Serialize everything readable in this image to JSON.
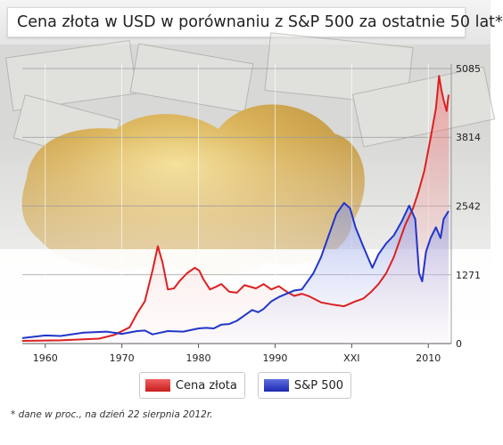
{
  "header": {
    "title": "Cena złota w USD w porównaniu z S&P 500 za ostatnie 50 lat*"
  },
  "footnote": "* dane w proc., na dzień 22 sierpnia 2012r.",
  "colors": {
    "gold": "#dd2020",
    "sp500": "#2236c8"
  },
  "chart_data": {
    "type": "line",
    "title": "Cena złota w USD w porównaniu z S&P 500 za ostatnie 50 lat*",
    "ylim": [
      0,
      5085
    ],
    "xlim": [
      1957,
      2013
    ],
    "y_ticks": [
      0,
      1271,
      2542,
      3814,
      5085
    ],
    "y_tick_labels": [
      "0",
      "1271",
      "2542",
      "3814",
      "5085"
    ],
    "x_ticks": [
      1960,
      1970,
      1980,
      1990,
      2000,
      2010
    ],
    "x_tick_labels": [
      "1960",
      "1970",
      "1980",
      "1990",
      "XXI",
      "2010"
    ],
    "grid": true,
    "legend_position": "bottom",
    "series": [
      {
        "name": "Cena złota",
        "color": "#dd2020",
        "x": [
          1957,
          1962,
          1967,
          1969,
          1971,
          1972,
          1973,
          1974,
          1974.7,
          1975.3,
          1976,
          1976.8,
          1977.5,
          1978.5,
          1979.5,
          1980.1,
          1980.6,
          1981.5,
          1982.3,
          1983,
          1984,
          1985,
          1986,
          1987.5,
          1988.5,
          1989.5,
          1990.5,
          1991.5,
          1992.5,
          1993.5,
          1994.5,
          1996,
          1997.5,
          1999,
          2000.5,
          2001.5,
          2002.5,
          2003.5,
          2004.5,
          2005.5,
          2006,
          2007,
          2008,
          2008.7,
          2009.5,
          2010.3,
          2011,
          2011.4,
          2011.7,
          2012,
          2012.4,
          2012.65
        ],
        "y": [
          50,
          60,
          90,
          160,
          300,
          560,
          780,
          1350,
          1800,
          1500,
          1000,
          1020,
          1150,
          1300,
          1400,
          1350,
          1200,
          1000,
          1050,
          1100,
          960,
          940,
          1080,
          1020,
          1100,
          1000,
          1060,
          960,
          880,
          920,
          870,
          760,
          720,
          690,
          780,
          830,
          950,
          1100,
          1300,
          1600,
          1800,
          2200,
          2500,
          2800,
          3200,
          3800,
          4350,
          4950,
          4700,
          4500,
          4300,
          4600
        ]
      },
      {
        "name": "S&P 500",
        "color": "#2236c8",
        "x": [
          1957,
          1960,
          1962,
          1965,
          1968,
          1970,
          1972,
          1973,
          1974,
          1976,
          1978,
          1980,
          1981,
          1982,
          1983,
          1984,
          1985,
          1986,
          1987,
          1987.8,
          1988.5,
          1989.5,
          1990.5,
          1991.5,
          1992.5,
          1993.5,
          1995,
          1996,
          1997,
          1998,
          1999,
          1999.8,
          2000.5,
          2001.5,
          2002.7,
          2003.5,
          2004.5,
          2005.5,
          2006.5,
          2007.5,
          2008.3,
          2008.8,
          2009.2,
          2009.7,
          2010.3,
          2011,
          2011.6,
          2012,
          2012.65
        ],
        "y": [
          100,
          150,
          140,
          200,
          220,
          180,
          230,
          240,
          170,
          230,
          220,
          280,
          290,
          280,
          350,
          360,
          420,
          520,
          620,
          580,
          640,
          780,
          860,
          920,
          980,
          1000,
          1300,
          1600,
          2000,
          2400,
          2600,
          2500,
          2150,
          1800,
          1400,
          1650,
          1850,
          2000,
          2250,
          2550,
          2300,
          1300,
          1150,
          1700,
          1950,
          2150,
          1950,
          2300,
          2450
        ]
      }
    ]
  }
}
